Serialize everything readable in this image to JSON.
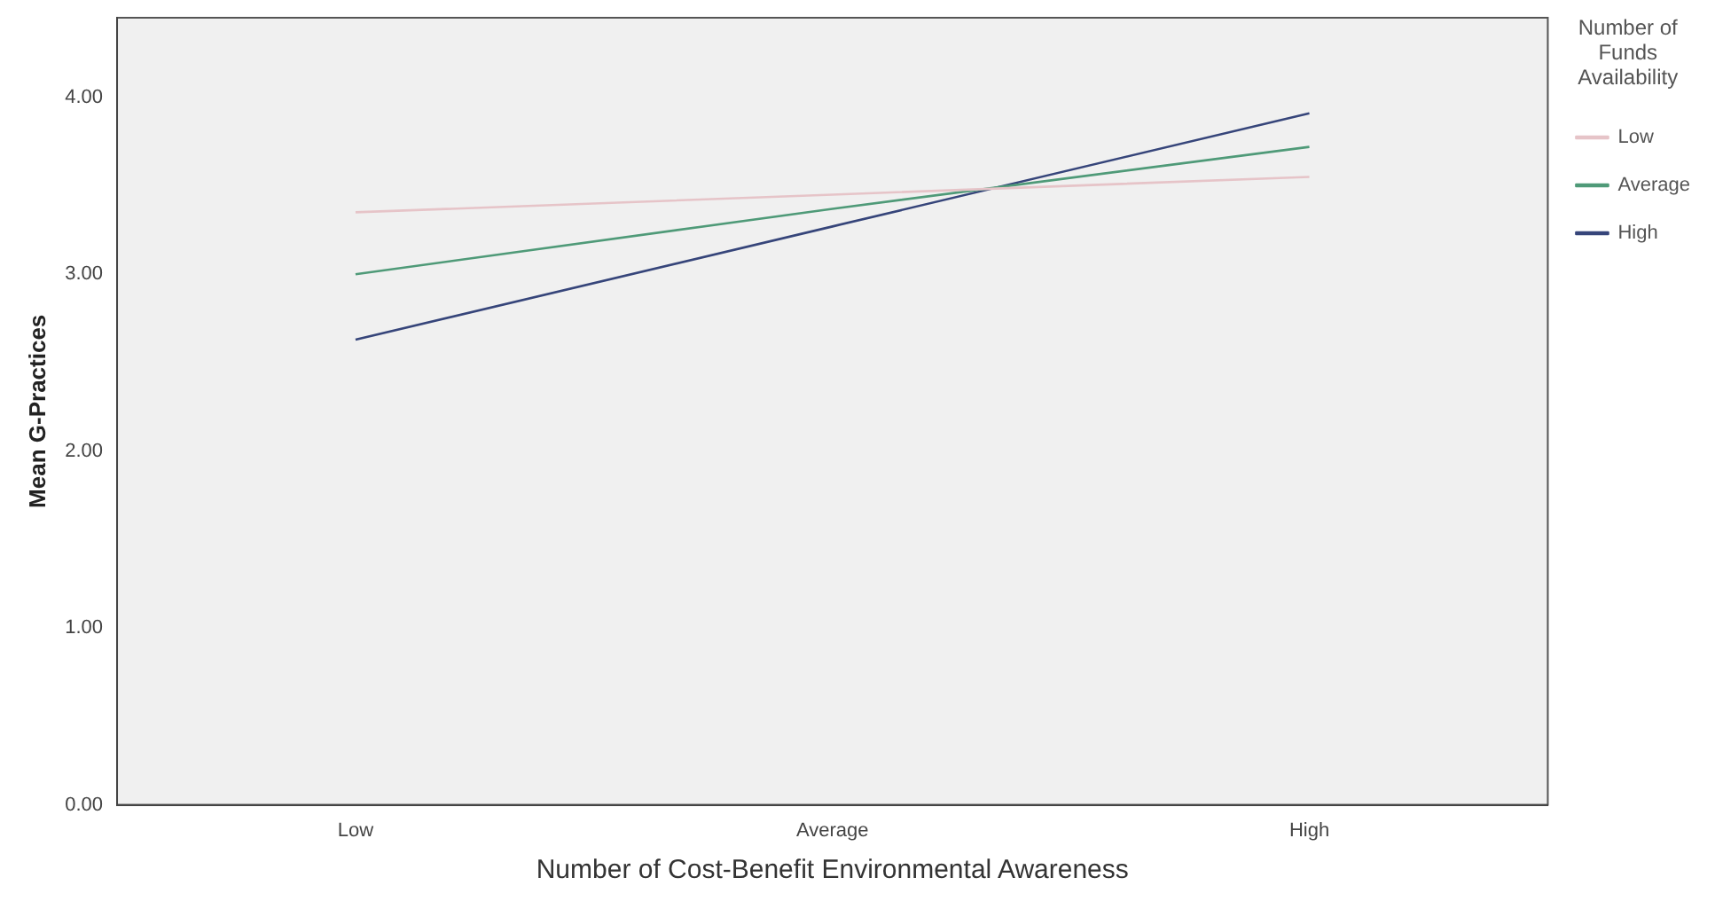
{
  "chart_data": {
    "type": "line",
    "xlabel": "Number of Cost-Benefit Environmental Awareness",
    "ylabel": "Mean G-Practices",
    "legend_title": "Number of Funds Availability",
    "categories": [
      "Low",
      "Average",
      "High"
    ],
    "series": [
      {
        "name": "Low",
        "color": "#e6c4c8",
        "values": [
          3.35,
          3.45,
          3.55
        ]
      },
      {
        "name": "Average",
        "color": "#4f9a78",
        "values": [
          3.0,
          3.37,
          3.72
        ]
      },
      {
        "name": "High",
        "color": "#36457a",
        "values": [
          2.63,
          3.27,
          3.91
        ]
      }
    ],
    "ylim": [
      0,
      4.45
    ],
    "yticks": [
      {
        "value": 0,
        "label": "0.00"
      },
      {
        "value": 1,
        "label": "1.00"
      },
      {
        "value": 2,
        "label": "2.00"
      },
      {
        "value": 3,
        "label": "3.00"
      },
      {
        "value": 4,
        "label": "4.00"
      }
    ],
    "grid": false,
    "legend": "top right",
    "marker": "none",
    "line_style": "solid"
  }
}
